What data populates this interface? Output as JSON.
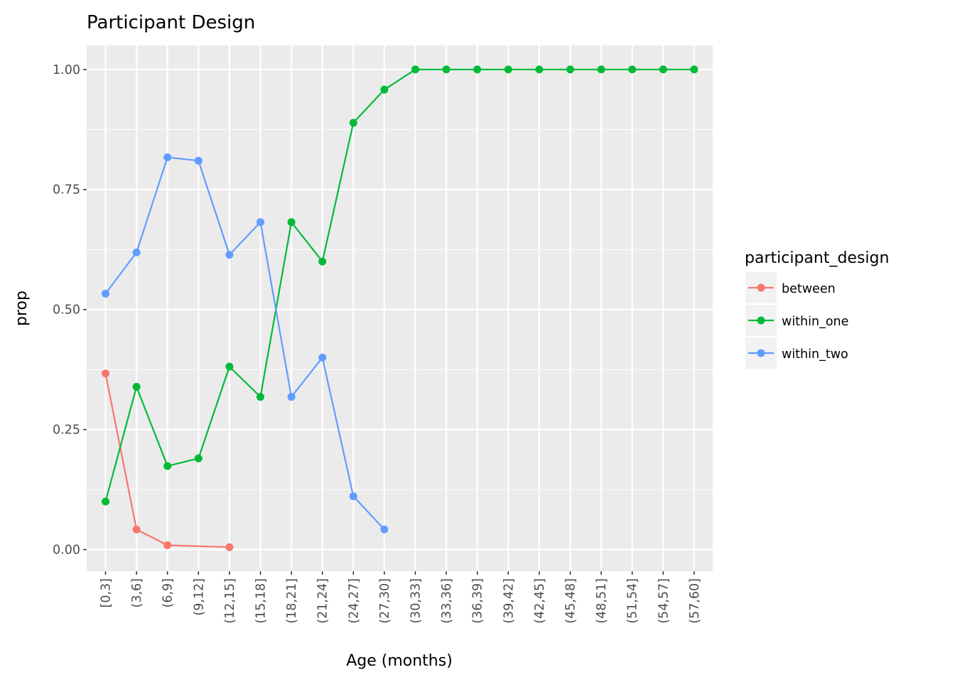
{
  "chart_data": {
    "type": "line",
    "title": "Participant Design",
    "xlabel": "Age (months)",
    "ylabel": "prop",
    "ylim": [
      -0.045,
      1.05
    ],
    "yticks": [
      0,
      0.25,
      0.5,
      0.75,
      1
    ],
    "ytick_labels": [
      "0.00",
      "0.25",
      "0.50",
      "0.75",
      "1.00"
    ],
    "grid": true,
    "legend": {
      "title": "participant_design",
      "position": "right"
    },
    "categories": [
      "[0,3]",
      "(3,6]",
      "(6,9]",
      "(9,12]",
      "(12,15]",
      "(15,18]",
      "(18,21]",
      "(21,24]",
      "(24,27]",
      "(27,30]",
      "(30,33]",
      "(33,36]",
      "(36,39]",
      "(39,42]",
      "(42,45]",
      "(45,48]",
      "(48,51]",
      "(51,54]",
      "(54,57]",
      "(57,60]"
    ],
    "series": [
      {
        "name": "between",
        "color": "#F8766D",
        "values": [
          0.367,
          0.042,
          0.009,
          null,
          0.005,
          null,
          null,
          null,
          null,
          null,
          null,
          null,
          null,
          null,
          null,
          null,
          null,
          null,
          null,
          null
        ]
      },
      {
        "name": "within_one",
        "color": "#00BA38",
        "values": [
          0.1,
          0.339,
          0.174,
          0.19,
          0.381,
          0.318,
          0.682,
          0.6,
          0.889,
          0.958,
          1,
          1,
          1,
          1,
          1,
          1,
          1,
          1,
          1,
          1
        ]
      },
      {
        "name": "within_two",
        "color": "#619CFF",
        "values": [
          0.533,
          0.619,
          0.817,
          0.81,
          0.614,
          0.682,
          0.318,
          0.4,
          0.111,
          0.042,
          null,
          null,
          null,
          null,
          null,
          null,
          null,
          null,
          null,
          null
        ]
      }
    ]
  }
}
